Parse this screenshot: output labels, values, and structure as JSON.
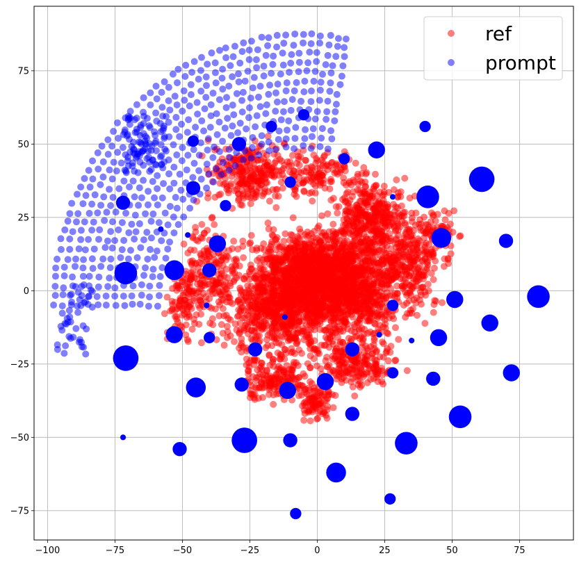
{
  "chart_data": {
    "type": "scatter",
    "title": "",
    "xlabel": "",
    "ylabel": "",
    "xlim": [
      -105,
      95
    ],
    "ylim": [
      -85,
      97
    ],
    "grid": true,
    "legend_position": "top-right",
    "x_ticks": [
      -100,
      -75,
      -50,
      -25,
      0,
      25,
      50,
      75
    ],
    "y_ticks": [
      -75,
      -50,
      -25,
      0,
      25,
      50,
      75
    ],
    "x_tick_labels": [
      "−100",
      "−75",
      "−50",
      "−25",
      "0",
      "25",
      "50",
      "75"
    ],
    "y_tick_labels": [
      "−75",
      "−50",
      "−25",
      "0",
      "25",
      "50",
      "75"
    ],
    "series": [
      {
        "name": "ref",
        "color": "#ff0000",
        "alpha": 0.5,
        "marker_size": 5,
        "clusters": [
          {
            "x": 0,
            "y": 5,
            "rx": 25,
            "ry": 14,
            "n": 1400
          },
          {
            "x": 10,
            "y": 0,
            "rx": 20,
            "ry": 18,
            "n": 700
          },
          {
            "x": -15,
            "y": -8,
            "rx": 18,
            "ry": 14,
            "n": 500
          },
          {
            "x": 20,
            "y": 25,
            "rx": 12,
            "ry": 12,
            "n": 350
          },
          {
            "x": -25,
            "y": 40,
            "rx": 14,
            "ry": 10,
            "n": 250
          },
          {
            "x": 35,
            "y": 10,
            "rx": 10,
            "ry": 16,
            "n": 250
          },
          {
            "x": -40,
            "y": 5,
            "rx": 10,
            "ry": 18,
            "n": 200
          },
          {
            "x": 15,
            "y": -25,
            "rx": 14,
            "ry": 8,
            "n": 200
          },
          {
            "x": -15,
            "y": -30,
            "rx": 12,
            "ry": 8,
            "n": 160
          },
          {
            "x": 0,
            "y": -38,
            "rx": 6,
            "ry": 6,
            "n": 90
          },
          {
            "x": 0,
            "y": 40,
            "rx": 16,
            "ry": 8,
            "n": 140
          },
          {
            "x": -50,
            "y": -5,
            "rx": 6,
            "ry": 10,
            "n": 80
          },
          {
            "x": 45,
            "y": 20,
            "rx": 6,
            "ry": 8,
            "n": 70
          }
        ]
      },
      {
        "name": "prompt",
        "color": "#0000ff",
        "alpha": 0.5,
        "marker_size": 5,
        "arc": {
          "cx": -5,
          "cy": -5,
          "r_min": 54,
          "r_max": 95,
          "deg_start": 80,
          "deg_end": 180
        },
        "lower_cluster": {
          "x": -90,
          "y": -10,
          "rx": 7,
          "ry": 12,
          "n": 40
        },
        "dense_cluster": {
          "x": -64,
          "y": 50,
          "rx": 8,
          "ry": 10,
          "n": 70
        },
        "blobs": [
          {
            "x": -5,
            "y": 60,
            "r": 2
          },
          {
            "x": -17,
            "y": 56,
            "r": 2
          },
          {
            "x": 40,
            "y": 56,
            "r": 2
          },
          {
            "x": -46,
            "y": 51,
            "r": 2
          },
          {
            "x": -29,
            "y": 50,
            "r": 2.5
          },
          {
            "x": 22,
            "y": 48,
            "r": 3
          },
          {
            "x": 10,
            "y": 45,
            "r": 2
          },
          {
            "x": 61,
            "y": 38,
            "r": 4.5
          },
          {
            "x": -10,
            "y": 37,
            "r": 2
          },
          {
            "x": -46,
            "y": 35,
            "r": 2.5
          },
          {
            "x": 41,
            "y": 32,
            "r": 4
          },
          {
            "x": 28,
            "y": 32,
            "r": 1
          },
          {
            "x": -72,
            "y": 30,
            "r": 2.5
          },
          {
            "x": -34,
            "y": 29,
            "r": 2
          },
          {
            "x": -58,
            "y": 21,
            "r": 1
          },
          {
            "x": -48,
            "y": 19,
            "r": 1
          },
          {
            "x": 46,
            "y": 18,
            "r": 3.5
          },
          {
            "x": 70,
            "y": 17,
            "r": 2.5
          },
          {
            "x": -37,
            "y": 16,
            "r": 3
          },
          {
            "x": -53,
            "y": 7,
            "r": 3.5
          },
          {
            "x": -40,
            "y": 7,
            "r": 2.5
          },
          {
            "x": -71,
            "y": 6,
            "r": 4
          },
          {
            "x": 82,
            "y": -2,
            "r": 4
          },
          {
            "x": 51,
            "y": -3,
            "r": 3
          },
          {
            "x": 28,
            "y": -5,
            "r": 2
          },
          {
            "x": -41,
            "y": -5,
            "r": 1
          },
          {
            "x": -12,
            "y": -9,
            "r": 1
          },
          {
            "x": 64,
            "y": -11,
            "r": 3
          },
          {
            "x": 23,
            "y": -15,
            "r": 1
          },
          {
            "x": -53,
            "y": -15,
            "r": 3
          },
          {
            "x": 45,
            "y": -16,
            "r": 3
          },
          {
            "x": -40,
            "y": -16,
            "r": 2
          },
          {
            "x": 35,
            "y": -17,
            "r": 1
          },
          {
            "x": 13,
            "y": -20,
            "r": 2.5
          },
          {
            "x": -23,
            "y": -20,
            "r": 2.5
          },
          {
            "x": -71,
            "y": -23,
            "r": 4.5
          },
          {
            "x": 72,
            "y": -28,
            "r": 3
          },
          {
            "x": 28,
            "y": -28,
            "r": 2
          },
          {
            "x": 43,
            "y": -30,
            "r": 2.5
          },
          {
            "x": 3,
            "y": -31,
            "r": 3
          },
          {
            "x": -28,
            "y": -32,
            "r": 2.5
          },
          {
            "x": -45,
            "y": -33,
            "r": 3.5
          },
          {
            "x": -11,
            "y": -34,
            "r": 3
          },
          {
            "x": 13,
            "y": -42,
            "r": 2.5
          },
          {
            "x": 53,
            "y": -43,
            "r": 4
          },
          {
            "x": -27,
            "y": -51,
            "r": 4.5
          },
          {
            "x": -10,
            "y": -51,
            "r": 2.5
          },
          {
            "x": 33,
            "y": -52,
            "r": 4
          },
          {
            "x": -72,
            "y": -50,
            "r": 1
          },
          {
            "x": -51,
            "y": -54,
            "r": 2.5
          },
          {
            "x": 7,
            "y": -62,
            "r": 3.5
          },
          {
            "x": 27,
            "y": -71,
            "r": 2
          },
          {
            "x": -8,
            "y": -76,
            "r": 2
          }
        ]
      }
    ]
  }
}
